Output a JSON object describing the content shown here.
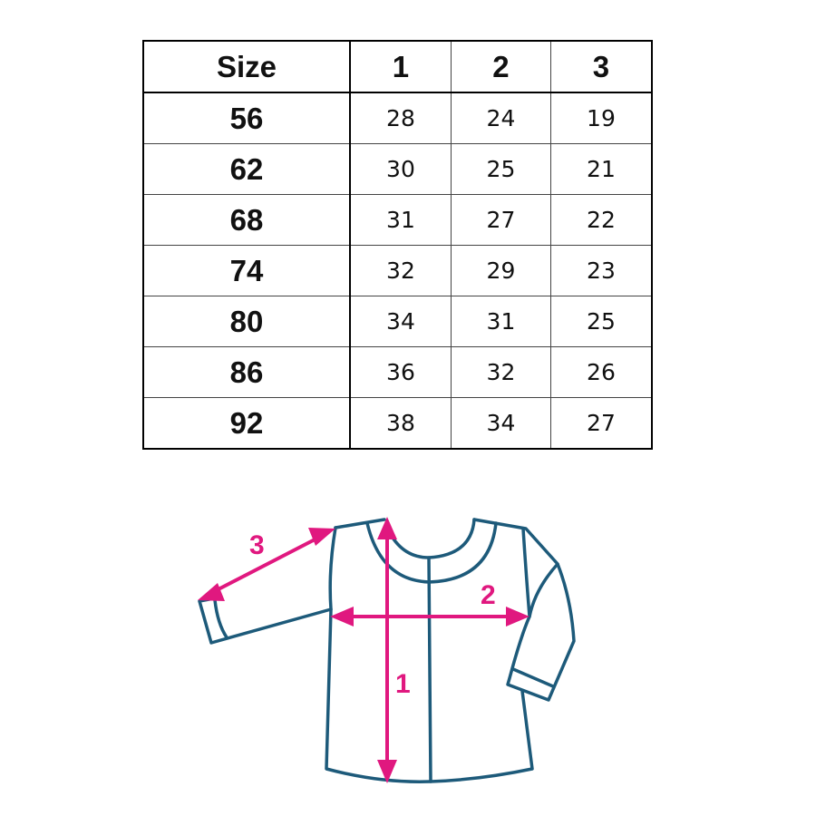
{
  "table": {
    "headers": [
      "Size",
      "1",
      "2",
      "3"
    ],
    "rows": [
      {
        "size": "56",
        "m1": "28",
        "m2": "24",
        "m3": "19"
      },
      {
        "size": "62",
        "m1": "30",
        "m2": "25",
        "m3": "21"
      },
      {
        "size": "68",
        "m1": "31",
        "m2": "27",
        "m3": "22"
      },
      {
        "size": "74",
        "m1": "32",
        "m2": "29",
        "m3": "23"
      },
      {
        "size": "80",
        "m1": "34",
        "m2": "31",
        "m3": "25"
      },
      {
        "size": "86",
        "m1": "36",
        "m2": "32",
        "m3": "26"
      },
      {
        "size": "92",
        "m1": "38",
        "m2": "34",
        "m3": "27"
      }
    ]
  },
  "diagram": {
    "labels": {
      "length": "1",
      "chest": "2",
      "sleeve": "3"
    },
    "colors": {
      "outline": "#1d5a7a",
      "arrows": "#e0187f"
    }
  }
}
